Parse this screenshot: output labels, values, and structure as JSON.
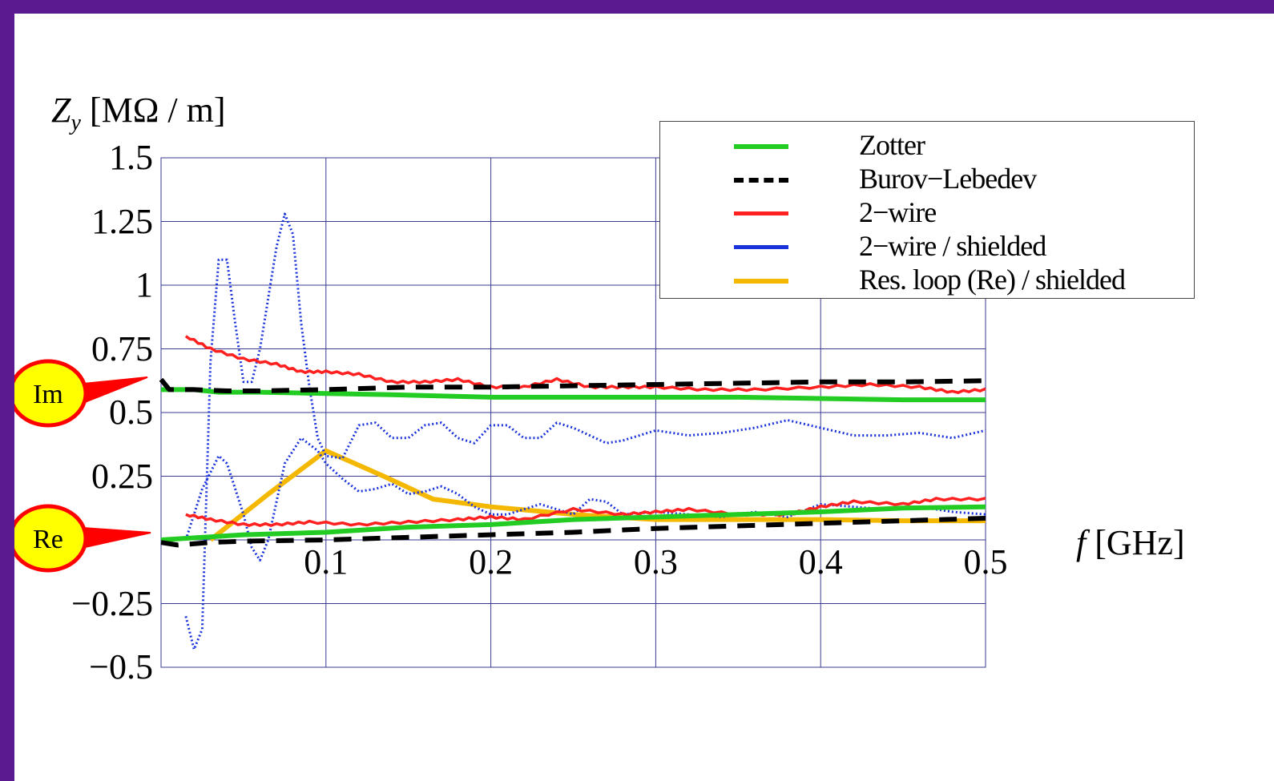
{
  "axes": {
    "ylabel_symbol": "Z",
    "ylabel_subscript": "y",
    "ylabel_unit": "[MΩ / m]",
    "xlabel_symbol": "f",
    "xlabel_unit": "[GHz]"
  },
  "callouts": {
    "imag": "Im",
    "real": "Re"
  },
  "chart_data": {
    "type": "line",
    "xlim": [
      0,
      0.5
    ],
    "ylim": [
      -0.5,
      1.5
    ],
    "yticks": [
      1.5,
      1.25,
      1,
      0.75,
      0.5,
      0.25,
      -0.25,
      -0.5
    ],
    "ytick_labels": [
      "1.5",
      "1.25",
      "1",
      "0.75",
      "0.5",
      "0.25",
      "−0.25",
      "−0.5"
    ],
    "xticks": [
      0.1,
      0.2,
      0.3,
      0.4,
      0.5
    ],
    "xtick_labels": [
      "0.1",
      "0.2",
      "0.3",
      "0.4",
      "0.5"
    ],
    "grid": true,
    "legend_position": "top-right",
    "series": [
      {
        "name": "Zotter",
        "color": "#22cc22",
        "style": "solid",
        "groups": [
          [
            [
              0,
              0.59
            ],
            [
              0.02,
              0.59
            ],
            [
              0.035,
              0.58
            ],
            [
              0.06,
              0.58
            ],
            [
              0.1,
              0.575
            ],
            [
              0.14,
              0.57
            ],
            [
              0.2,
              0.56
            ],
            [
              0.25,
              0.56
            ],
            [
              0.3,
              0.56
            ],
            [
              0.35,
              0.56
            ],
            [
              0.4,
              0.555
            ],
            [
              0.45,
              0.55
            ],
            [
              0.5,
              0.55
            ]
          ],
          [
            [
              0,
              0.0
            ],
            [
              0.05,
              0.02
            ],
            [
              0.1,
              0.03
            ],
            [
              0.15,
              0.05
            ],
            [
              0.2,
              0.06
            ],
            [
              0.25,
              0.08
            ],
            [
              0.3,
              0.09
            ],
            [
              0.35,
              0.1
            ],
            [
              0.4,
              0.11
            ],
            [
              0.45,
              0.125
            ],
            [
              0.5,
              0.13
            ]
          ]
        ]
      },
      {
        "name": "Burov−Lebedev",
        "color": "#000000",
        "style": "dashed",
        "groups": [
          [
            [
              0,
              0.63
            ],
            [
              0.005,
              0.59
            ],
            [
              0.02,
              0.59
            ],
            [
              0.04,
              0.585
            ],
            [
              0.06,
              0.585
            ],
            [
              0.1,
              0.59
            ],
            [
              0.15,
              0.6
            ],
            [
              0.2,
              0.6
            ],
            [
              0.25,
              0.605
            ],
            [
              0.3,
              0.61
            ],
            [
              0.35,
              0.615
            ],
            [
              0.4,
              0.62
            ],
            [
              0.45,
              0.62
            ],
            [
              0.5,
              0.625
            ]
          ],
          [
            [
              0,
              -0.01
            ],
            [
              0.01,
              -0.02
            ],
            [
              0.03,
              -0.01
            ],
            [
              0.05,
              -0.005
            ],
            [
              0.1,
              0.0
            ],
            [
              0.15,
              0.01
            ],
            [
              0.2,
              0.02
            ],
            [
              0.25,
              0.03
            ],
            [
              0.3,
              0.045
            ],
            [
              0.35,
              0.055
            ],
            [
              0.4,
              0.065
            ],
            [
              0.45,
              0.075
            ],
            [
              0.5,
              0.085
            ]
          ]
        ]
      },
      {
        "name": "2−wire",
        "color": "#ff2020",
        "style": "stepped",
        "groups": [
          [
            [
              0.015,
              0.8
            ],
            [
              0.03,
              0.75
            ],
            [
              0.05,
              0.71
            ],
            [
              0.07,
              0.69
            ],
            [
              0.085,
              0.66
            ],
            [
              0.1,
              0.66
            ],
            [
              0.12,
              0.65
            ],
            [
              0.14,
              0.62
            ],
            [
              0.16,
              0.62
            ],
            [
              0.18,
              0.63
            ],
            [
              0.2,
              0.6
            ],
            [
              0.22,
              0.6
            ],
            [
              0.24,
              0.63
            ],
            [
              0.26,
              0.6
            ],
            [
              0.28,
              0.6
            ],
            [
              0.3,
              0.6
            ],
            [
              0.33,
              0.59
            ],
            [
              0.36,
              0.59
            ],
            [
              0.4,
              0.6
            ],
            [
              0.43,
              0.61
            ],
            [
              0.46,
              0.6
            ],
            [
              0.48,
              0.58
            ],
            [
              0.5,
              0.59
            ]
          ],
          [
            [
              0.015,
              0.1
            ],
            [
              0.03,
              0.08
            ],
            [
              0.05,
              0.06
            ],
            [
              0.07,
              0.06
            ],
            [
              0.09,
              0.07
            ],
            [
              0.12,
              0.06
            ],
            [
              0.15,
              0.07
            ],
            [
              0.18,
              0.08
            ],
            [
              0.2,
              0.09
            ],
            [
              0.22,
              0.08
            ],
            [
              0.25,
              0.12
            ],
            [
              0.28,
              0.1
            ],
            [
              0.3,
              0.11
            ],
            [
              0.32,
              0.12
            ],
            [
              0.35,
              0.1
            ],
            [
              0.38,
              0.1
            ],
            [
              0.4,
              0.13
            ],
            [
              0.42,
              0.15
            ],
            [
              0.45,
              0.14
            ],
            [
              0.47,
              0.16
            ],
            [
              0.5,
              0.16
            ]
          ]
        ]
      },
      {
        "name": "2−wire / shielded",
        "color": "#1a33dd",
        "style": "dotted",
        "groups": [
          [
            [
              0.015,
              -0.3
            ],
            [
              0.02,
              -0.43
            ],
            [
              0.025,
              -0.35
            ],
            [
              0.03,
              0.7
            ],
            [
              0.035,
              1.1
            ],
            [
              0.04,
              1.1
            ],
            [
              0.045,
              0.85
            ],
            [
              0.05,
              0.62
            ],
            [
              0.055,
              0.62
            ],
            [
              0.06,
              0.75
            ],
            [
              0.065,
              0.95
            ],
            [
              0.07,
              1.15
            ],
            [
              0.075,
              1.28
            ],
            [
              0.08,
              1.2
            ],
            [
              0.085,
              0.85
            ],
            [
              0.09,
              0.6
            ],
            [
              0.095,
              0.4
            ],
            [
              0.1,
              0.33
            ],
            [
              0.11,
              0.32
            ],
            [
              0.12,
              0.45
            ],
            [
              0.13,
              0.46
            ],
            [
              0.14,
              0.4
            ],
            [
              0.15,
              0.4
            ],
            [
              0.16,
              0.45
            ],
            [
              0.17,
              0.46
            ],
            [
              0.18,
              0.4
            ],
            [
              0.19,
              0.38
            ],
            [
              0.2,
              0.45
            ],
            [
              0.21,
              0.45
            ],
            [
              0.22,
              0.4
            ],
            [
              0.23,
              0.4
            ],
            [
              0.24,
              0.46
            ],
            [
              0.25,
              0.44
            ],
            [
              0.27,
              0.38
            ],
            [
              0.28,
              0.39
            ],
            [
              0.3,
              0.43
            ],
            [
              0.32,
              0.41
            ],
            [
              0.34,
              0.42
            ],
            [
              0.36,
              0.44
            ],
            [
              0.38,
              0.47
            ],
            [
              0.4,
              0.44
            ],
            [
              0.42,
              0.41
            ],
            [
              0.44,
              0.41
            ],
            [
              0.46,
              0.42
            ],
            [
              0.48,
              0.4
            ],
            [
              0.5,
              0.43
            ]
          ],
          [
            [
              0.015,
              0.0
            ],
            [
              0.025,
              0.2
            ],
            [
              0.035,
              0.33
            ],
            [
              0.04,
              0.3
            ],
            [
              0.05,
              0.1
            ],
            [
              0.055,
              -0.03
            ],
            [
              0.06,
              -0.08
            ],
            [
              0.065,
              0.0
            ],
            [
              0.075,
              0.3
            ],
            [
              0.085,
              0.4
            ],
            [
              0.095,
              0.35
            ],
            [
              0.1,
              0.3
            ],
            [
              0.11,
              0.24
            ],
            [
              0.12,
              0.19
            ],
            [
              0.13,
              0.2
            ],
            [
              0.14,
              0.22
            ],
            [
              0.15,
              0.18
            ],
            [
              0.16,
              0.19
            ],
            [
              0.17,
              0.21
            ],
            [
              0.18,
              0.18
            ],
            [
              0.19,
              0.13
            ],
            [
              0.2,
              0.1
            ],
            [
              0.21,
              0.1
            ],
            [
              0.22,
              0.12
            ],
            [
              0.23,
              0.14
            ],
            [
              0.24,
              0.12
            ],
            [
              0.25,
              0.1
            ],
            [
              0.26,
              0.16
            ],
            [
              0.27,
              0.15
            ],
            [
              0.28,
              0.1
            ],
            [
              0.3,
              0.11
            ],
            [
              0.32,
              0.1
            ],
            [
              0.34,
              0.09
            ],
            [
              0.36,
              0.11
            ],
            [
              0.38,
              0.09
            ],
            [
              0.4,
              0.14
            ],
            [
              0.42,
              0.13
            ],
            [
              0.44,
              0.12
            ],
            [
              0.46,
              0.13
            ],
            [
              0.48,
              0.11
            ],
            [
              0.5,
              0.1
            ]
          ]
        ]
      },
      {
        "name": "Res. loop (Re) / shielded",
        "color": "#f5b800",
        "style": "solid",
        "groups": [
          [
            [
              0.03,
              0.0
            ],
            [
              0.065,
              0.18
            ],
            [
              0.1,
              0.35
            ],
            [
              0.135,
              0.25
            ],
            [
              0.165,
              0.16
            ],
            [
              0.2,
              0.13
            ],
            [
              0.25,
              0.1
            ],
            [
              0.3,
              0.08
            ],
            [
              0.35,
              0.08
            ],
            [
              0.4,
              0.08
            ],
            [
              0.45,
              0.075
            ],
            [
              0.5,
              0.075
            ]
          ]
        ]
      }
    ]
  }
}
